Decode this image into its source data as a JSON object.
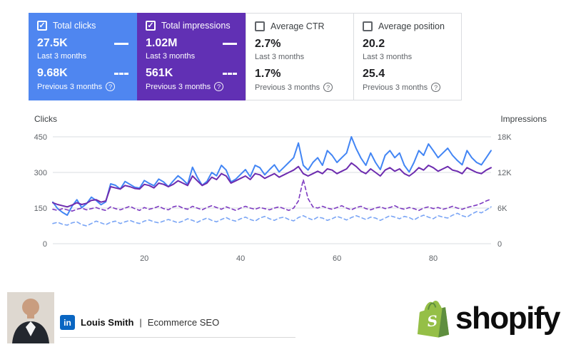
{
  "cards": [
    {
      "label": "Total clicks",
      "checked": true,
      "bg": "#4f86f0",
      "fg": "#ffffff",
      "current": {
        "value": "27.5K",
        "period": "Last 3 months"
      },
      "previous": {
        "value": "9.68K",
        "period": "Previous 3 months"
      }
    },
    {
      "label": "Total impressions",
      "checked": true,
      "bg": "#6130b4",
      "fg": "#ffffff",
      "current": {
        "value": "1.02M",
        "period": "Last 3 months"
      },
      "previous": {
        "value": "561K",
        "period": "Previous 3 months"
      }
    },
    {
      "label": "Average CTR",
      "checked": false,
      "bg": "#ffffff",
      "fg": "#3c4043",
      "current": {
        "value": "2.7%",
        "period": "Last 3 months"
      },
      "previous": {
        "value": "1.7%",
        "period": "Previous 3 months"
      }
    },
    {
      "label": "Average position",
      "checked": false,
      "bg": "#ffffff",
      "fg": "#3c4043",
      "current": {
        "value": "20.2",
        "period": "Last 3 months"
      },
      "previous": {
        "value": "25.4",
        "period": "Previous 3 months"
      }
    }
  ],
  "chart_data": {
    "type": "line",
    "x_domain": [
      1,
      92
    ],
    "x_ticks": [
      20,
      40,
      60,
      80
    ],
    "grid_color": "#dadce0",
    "left_axis": {
      "title": "Clicks",
      "max": 450,
      "ticks": [
        0,
        150,
        300,
        450
      ]
    },
    "right_axis": {
      "title": "Impressions",
      "max": 18,
      "tick_values": [
        0,
        6,
        12,
        18
      ],
      "tick_labels": [
        "0",
        "6K",
        "12K",
        "18K"
      ]
    },
    "series": [
      {
        "id": "clicks-current",
        "name": "Total clicks - Last 3 months",
        "axis": "left",
        "color": "#4285f4",
        "width": 2,
        "dash": null,
        "values": [
          175,
          148,
          132,
          120,
          158,
          185,
          152,
          168,
          196,
          182,
          164,
          176,
          252,
          246,
          230,
          262,
          250,
          238,
          234,
          266,
          254,
          244,
          272,
          260,
          240,
          264,
          286,
          270,
          250,
          322,
          280,
          246,
          262,
          300,
          286,
          330,
          310,
          260,
          272,
          292,
          312,
          282,
          330,
          320,
          290,
          312,
          332,
          302,
          322,
          342,
          362,
          424,
          330,
          310,
          342,
          362,
          330,
          392,
          372,
          342,
          362,
          382,
          450,
          400,
          360,
          330,
          382,
          342,
          312,
          372,
          392,
          362,
          382,
          330,
          302,
          342,
          392,
          372,
          420,
          392,
          362,
          382,
          402,
          372,
          350,
          332,
          392,
          362,
          342,
          332,
          362,
          392
        ]
      },
      {
        "id": "impressions-current",
        "name": "Total impressions - Last 3 months",
        "axis": "right",
        "color": "#6d2caf",
        "width": 2,
        "dash": null,
        "values": [
          6.9,
          6.6,
          6.4,
          6.2,
          6.5,
          6.9,
          6.6,
          6.8,
          7.3,
          7.4,
          7.0,
          7.2,
          9.6,
          9.4,
          9.2,
          9.8,
          9.6,
          9.3,
          9.2,
          10.0,
          9.8,
          9.4,
          10.2,
          10.0,
          9.6,
          10.0,
          10.6,
          10.2,
          9.8,
          11.4,
          10.6,
          9.8,
          10.2,
          11.2,
          10.8,
          11.8,
          11.4,
          10.2,
          10.6,
          11.0,
          11.4,
          10.8,
          11.8,
          11.6,
          11.0,
          11.4,
          11.8,
          11.2,
          11.6,
          12.0,
          12.4,
          13.0,
          11.8,
          11.4,
          11.8,
          12.2,
          11.8,
          12.6,
          12.4,
          11.8,
          12.2,
          12.6,
          13.6,
          13.0,
          12.2,
          11.8,
          12.6,
          12.0,
          11.4,
          12.4,
          12.8,
          12.2,
          12.6,
          11.8,
          11.4,
          12.0,
          12.8,
          12.4,
          13.2,
          12.8,
          12.2,
          12.6,
          13.0,
          12.4,
          12.2,
          11.8,
          12.8,
          12.4,
          12.0,
          11.8,
          12.4,
          12.8
        ]
      },
      {
        "id": "impressions-previous",
        "name": "Total impressions - Previous 3 months",
        "axis": "right",
        "color": "#7d3ac1",
        "width": 1.6,
        "dash": "5 4",
        "values": [
          5.8,
          5.6,
          5.9,
          5.7,
          5.5,
          5.8,
          6.0,
          5.7,
          5.9,
          6.1,
          5.8,
          5.6,
          6.2,
          5.9,
          5.7,
          6.0,
          6.3,
          5.9,
          5.6,
          6.1,
          5.8,
          6.0,
          6.3,
          5.9,
          5.7,
          6.2,
          6.4,
          6.0,
          5.8,
          6.3,
          6.0,
          5.7,
          6.1,
          6.4,
          6.1,
          5.8,
          6.2,
          5.9,
          5.6,
          6.0,
          6.3,
          6.0,
          5.8,
          6.1,
          5.9,
          5.7,
          6.0,
          6.2,
          5.9,
          5.6,
          6.0,
          7.2,
          10.8,
          7.6,
          6.2,
          6.0,
          6.3,
          6.0,
          5.8,
          6.1,
          6.4,
          6.0,
          5.7,
          6.1,
          6.3,
          5.9,
          5.7,
          6.0,
          6.2,
          5.9,
          6.1,
          6.4,
          6.0,
          5.8,
          6.1,
          5.9,
          5.6,
          6.0,
          6.2,
          5.9,
          6.1,
          5.8,
          6.0,
          6.3,
          6.0,
          5.8,
          6.1,
          6.3,
          6.5,
          6.8,
          7.2,
          7.5
        ]
      },
      {
        "id": "clicks-previous",
        "name": "Total clicks - Previous 3 months",
        "axis": "left",
        "color": "#7aa5f5",
        "width": 1.6,
        "dash": "5 4",
        "values": [
          85,
          90,
          82,
          78,
          88,
          92,
          80,
          75,
          85,
          95,
          88,
          80,
          90,
          95,
          85,
          92,
          98,
          90,
          85,
          95,
          100,
          92,
          88,
          95,
          102,
          95,
          88,
          95,
          105,
          98,
          90,
          100,
          108,
          98,
          92,
          102,
          110,
          100,
          95,
          105,
          112,
          102,
          95,
          108,
          115,
          105,
          98,
          108,
          112,
          102,
          96,
          110,
          118,
          108,
          100,
          112,
          108,
          98,
          105,
          115,
          108,
          100,
          110,
          118,
          110,
          102,
          112,
          108,
          98,
          108,
          118,
          112,
          105,
          115,
          110,
          100,
          112,
          120,
          112,
          105,
          118,
          112,
          108,
          120,
          128,
          118,
          112,
          125,
          135,
          130,
          142,
          155
        ]
      }
    ]
  },
  "footer": {
    "name": "Louis Smith",
    "separator": "|",
    "role": "Ecommerce SEO",
    "linkedin_glyph": "in",
    "brand": "shopify",
    "colors": {
      "linkedin_blue": "#0a66c2",
      "bag_green": "#95bf47",
      "bag_dark_green": "#5e8e3e"
    }
  }
}
